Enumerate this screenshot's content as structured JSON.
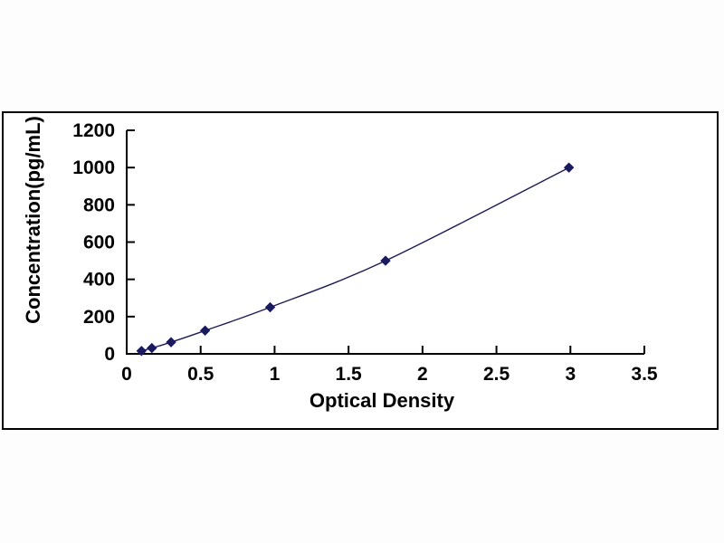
{
  "figure": {
    "background_color": "#ffffff",
    "frame_border_color": "#000000"
  },
  "chart_data": {
    "type": "line",
    "title": "",
    "xlabel": "Optical Density",
    "ylabel": "Concentration(pg/mL)",
    "x": [
      0.1,
      0.17,
      0.3,
      0.53,
      0.97,
      1.75,
      2.99
    ],
    "series": [
      {
        "name": "elisa-standard-curve",
        "values": [
          15.6,
          31.2,
          62.5,
          125,
          250,
          500,
          1000
        ]
      }
    ],
    "xlim": [
      0,
      3.5
    ],
    "ylim": [
      0,
      1200
    ],
    "x_ticks": [
      0,
      0.5,
      1,
      1.5,
      2,
      2.5,
      3,
      3.5
    ],
    "x_tick_labels": [
      "0",
      "0.5",
      "1",
      "1.5",
      "2",
      "2.5",
      "3",
      "3.5"
    ],
    "y_ticks": [
      0,
      200,
      400,
      600,
      800,
      1000,
      1200
    ],
    "y_tick_labels": [
      "0",
      "200",
      "400",
      "600",
      "800",
      "1000",
      "1200"
    ],
    "grid": false,
    "legend_position": "none",
    "marker": "diamond",
    "line_color": "#1c1c54",
    "marker_color": "#1a1a5e",
    "axis_color": "#000000",
    "tick_label_color": "#000000"
  }
}
